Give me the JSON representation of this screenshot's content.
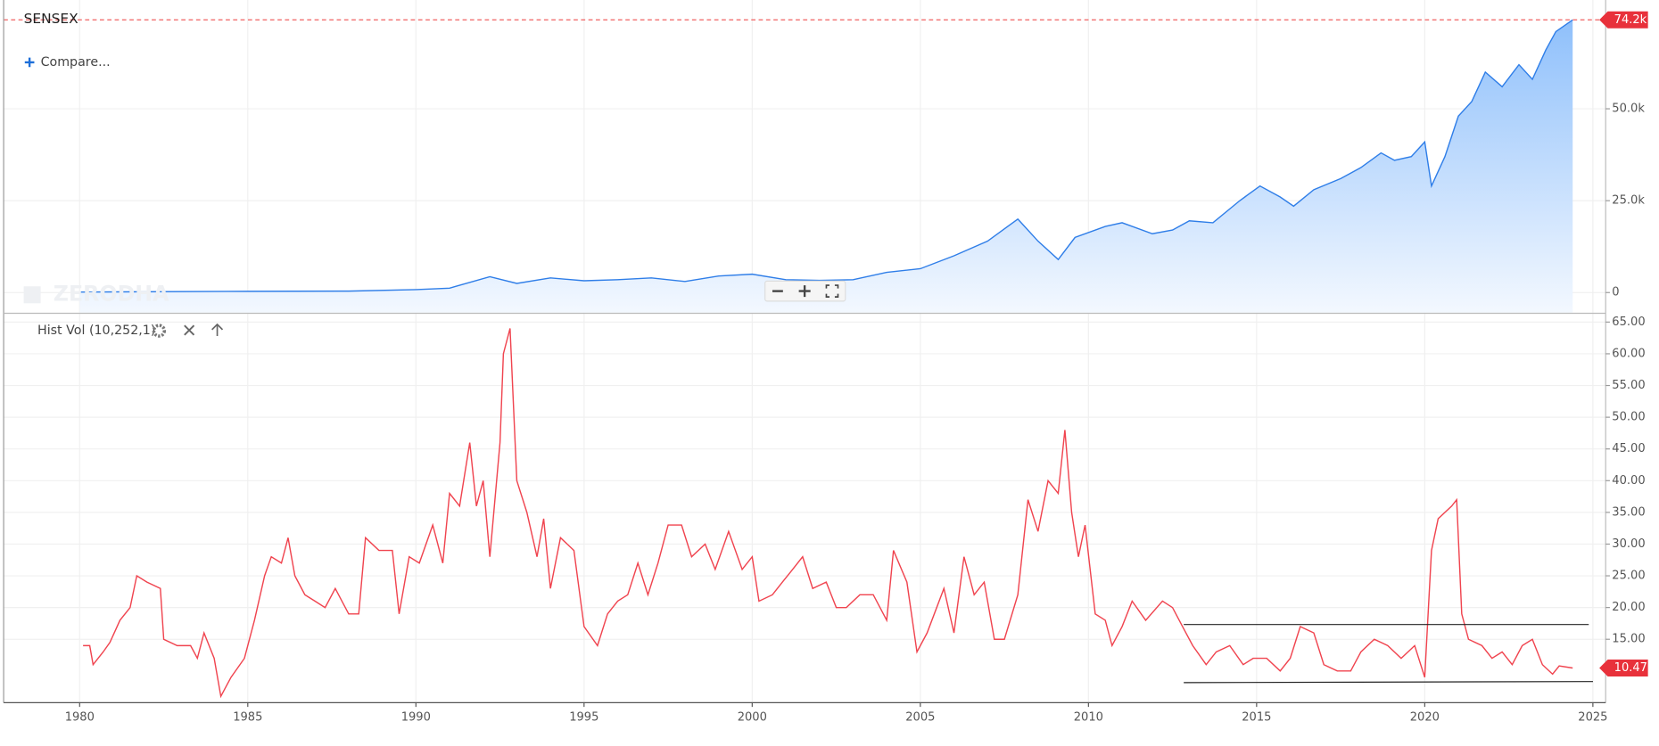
{
  "ui": {
    "compare": "Compare...",
    "watermark": "ZERODHA"
  },
  "chart_data": [
    {
      "type": "area",
      "title": "SENSEX",
      "last_value_label": "74.2k",
      "xlim": [
        1977.74,
        2025.38
      ],
      "ylim": [
        -5500,
        79600
      ],
      "yticks": [
        0,
        {
          "value": 25000,
          "label": "25.0k"
        },
        {
          "value": 50000,
          "label": "50.0k"
        }
      ],
      "grid": true,
      "series": [
        {
          "name": "SENSEX",
          "color": "#2f7ee8",
          "x": [
            1980.0,
            1985.0,
            1988.0,
            1990.0,
            1991.0,
            1992.2,
            1993.0,
            1994.0,
            1995.0,
            1996.0,
            1997.0,
            1998.0,
            1999.0,
            2000.0,
            2001.0,
            2002.0,
            2003.0,
            2004.0,
            2005.0,
            2006.0,
            2007.0,
            2007.9,
            2008.5,
            2009.1,
            2009.6,
            2010.5,
            2011.0,
            2011.9,
            2012.5,
            2013.0,
            2013.7,
            2014.5,
            2015.1,
            2015.7,
            2016.1,
            2016.7,
            2017.5,
            2018.1,
            2018.7,
            2019.1,
            2019.6,
            2020.0,
            2020.2,
            2020.6,
            2021.0,
            2021.4,
            2021.8,
            2022.3,
            2022.8,
            2023.2,
            2023.6,
            2023.9,
            2024.4
          ],
          "values": [
            130,
            350,
            400,
            800,
            1200,
            4300,
            2500,
            4000,
            3200,
            3500,
            4000,
            3000,
            4500,
            5000,
            3500,
            3300,
            3500,
            5500,
            6500,
            10000,
            14000,
            20000,
            14000,
            9000,
            15000,
            18000,
            19000,
            16000,
            17000,
            19500,
            19000,
            25000,
            29000,
            26000,
            23500,
            28000,
            31000,
            34000,
            38000,
            36000,
            37000,
            41000,
            29000,
            37000,
            48000,
            52000,
            60000,
            56000,
            62000,
            58000,
            66000,
            71000,
            74200
          ]
        }
      ]
    },
    {
      "type": "line",
      "title": "Hist Vol (10,252,1)",
      "last_value_label": "10.47",
      "xlim": [
        1977.74,
        2025.38
      ],
      "ylim": [
        5,
        66.3
      ],
      "xticks": [
        1980,
        1985,
        1990,
        1995,
        2000,
        2005,
        2010,
        2015,
        2020,
        2025
      ],
      "yticks": [
        {
          "value": 15,
          "label": "15.00"
        },
        {
          "value": 20,
          "label": "20.00"
        },
        {
          "value": 25,
          "label": "25.00"
        },
        {
          "value": 30,
          "label": "30.00"
        },
        {
          "value": 35,
          "label": "35.00"
        },
        {
          "value": 40,
          "label": "40.00"
        },
        {
          "value": 45,
          "label": "45.00"
        },
        {
          "value": 50,
          "label": "50.00"
        },
        {
          "value": 55,
          "label": "55.00"
        },
        {
          "value": 60,
          "label": "60.00"
        },
        {
          "value": 65,
          "label": "65.00"
        }
      ],
      "grid": true,
      "series": [
        {
          "name": "Hist Vol",
          "color": "#f0444f",
          "x": [
            1980.1,
            1980.3,
            1980.4,
            1980.7,
            1980.9,
            1981.2,
            1981.5,
            1981.7,
            1982.0,
            1982.4,
            1982.5,
            1982.9,
            1983.3,
            1983.5,
            1983.7,
            1984.0,
            1984.2,
            1984.5,
            1984.9,
            1985.2,
            1985.5,
            1985.7,
            1986.0,
            1986.2,
            1986.4,
            1986.7,
            1987.0,
            1987.3,
            1987.6,
            1988.0,
            1988.3,
            1988.5,
            1988.9,
            1989.3,
            1989.5,
            1989.8,
            1990.1,
            1990.5,
            1990.8,
            1991.0,
            1991.3,
            1991.6,
            1991.8,
            1992.0,
            1992.2,
            1992.5,
            1992.6,
            1992.8,
            1993.0,
            1993.3,
            1993.6,
            1993.8,
            1994.0,
            1994.3,
            1994.7,
            1995.0,
            1995.4,
            1995.7,
            1996.0,
            1996.3,
            1996.6,
            1996.9,
            1997.2,
            1997.5,
            1997.9,
            1998.2,
            1998.6,
            1998.9,
            1999.3,
            1999.7,
            2000.0,
            2000.2,
            2000.6,
            2000.9,
            2001.2,
            2001.5,
            2001.8,
            2002.2,
            2002.5,
            2002.8,
            2003.2,
            2003.6,
            2004.0,
            2004.2,
            2004.6,
            2004.9,
            2005.2,
            2005.7,
            2006.0,
            2006.3,
            2006.6,
            2006.9,
            2007.2,
            2007.5,
            2007.9,
            2008.2,
            2008.5,
            2008.8,
            2009.1,
            2009.3,
            2009.5,
            2009.7,
            2009.9,
            2010.2,
            2010.5,
            2010.7,
            2011.0,
            2011.3,
            2011.7,
            2012.2,
            2012.5,
            2012.8,
            2013.1,
            2013.5,
            2013.8,
            2014.2,
            2014.6,
            2014.9,
            2015.3,
            2015.7,
            2016.0,
            2016.3,
            2016.7,
            2017.0,
            2017.4,
            2017.8,
            2018.1,
            2018.5,
            2018.9,
            2019.3,
            2019.7,
            2020.0,
            2020.2,
            2020.4,
            2020.8,
            2020.95,
            2021.1,
            2021.3,
            2021.7,
            2022.0,
            2022.3,
            2022.6,
            2022.9,
            2023.2,
            2023.5,
            2023.8,
            2024.0,
            2024.4
          ],
          "values": [
            14,
            14,
            11,
            13,
            14.5,
            18,
            20,
            25,
            24,
            23,
            15,
            14,
            14,
            12,
            16,
            12,
            6,
            9,
            12,
            18,
            25,
            28,
            27,
            31,
            25,
            22,
            21,
            20,
            23,
            19,
            19,
            31,
            29,
            29,
            19,
            28,
            27,
            33,
            27,
            38,
            36,
            46,
            36,
            40,
            28,
            46,
            60,
            64,
            40,
            35,
            28,
            34,
            23,
            31,
            29,
            17,
            14,
            19,
            21,
            22,
            27,
            22,
            27,
            33,
            33,
            28,
            30,
            26,
            32,
            26,
            28,
            21,
            22,
            24,
            26,
            28,
            23,
            24,
            20,
            20,
            22,
            22,
            18,
            29,
            24,
            13,
            16,
            23,
            16,
            28,
            22,
            24,
            15,
            15,
            22,
            37,
            32,
            40,
            38,
            48,
            35,
            28,
            33,
            19,
            18,
            14,
            17,
            21,
            18,
            21,
            20,
            17,
            14,
            11,
            13,
            14,
            11,
            12,
            12,
            10,
            12,
            17,
            16,
            11,
            10,
            10,
            13,
            15,
            14,
            12,
            14,
            9,
            29,
            34,
            36,
            37,
            19,
            15,
            14,
            12,
            13,
            11,
            14,
            15,
            11,
            9.5,
            10.8,
            10.47
          ]
        }
      ]
    }
  ]
}
